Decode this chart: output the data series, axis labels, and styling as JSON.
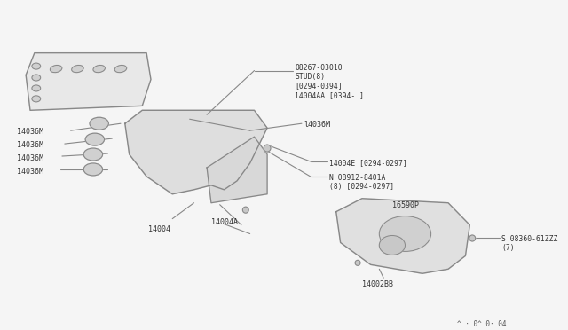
{
  "bg_color": "#f5f5f5",
  "line_color": "#888888",
  "part_color": "#cccccc",
  "text_color": "#333333",
  "title": "",
  "footnote": "^ · 0^ 0· 04",
  "labels": {
    "stud_label": "08267-03010\nSTUD(8)\n[0294-0394]\n14004AA [0394- ]",
    "l14036m_top": "l4036M",
    "l14036m_left1": "14036M",
    "l14036m_left2": "14036M",
    "l14036m_left3": "14036M",
    "l14036m_left4": "14036M",
    "l14004e": "14004E [0294-0297]",
    "n08912": "N 08912-8401A\n(8) [0294-0297]",
    "l16590p": "16590P",
    "s08360": "S 08360-61ZZZ\n(7)",
    "l14004a": "14004A",
    "l14004": "14004",
    "l14002bb": "14002BB"
  }
}
